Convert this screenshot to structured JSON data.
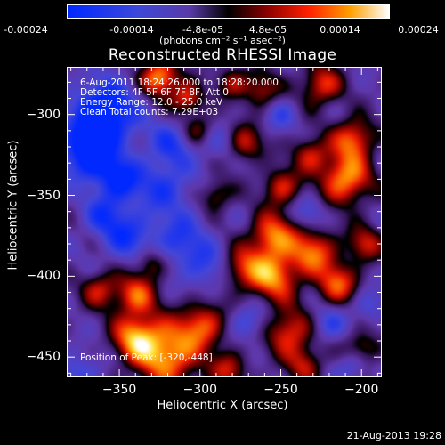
{
  "colorbar": {
    "ticks": [
      "-0.00024",
      "-0.00014",
      "-4.8e-05",
      "4.8e-05",
      "0.00014",
      "0.00024"
    ],
    "unit_label": "(photons cm⁻² s⁻¹ asec⁻²)",
    "min": -0.00024,
    "max": 0.00024
  },
  "plot": {
    "title": "Reconstructed RHESSI Image",
    "info_lines": [
      " 6-Aug-2011 18:24:26.000 to 18:28:20.000",
      "Detectors: 4F 5F 6F 7F 8F, Att 0",
      "Energy Range: 12.0 - 25.0 keV",
      "Clean    Total counts: 7.29E+03"
    ],
    "peak_label": "Position of Peak: [-320,-448]",
    "footer": "21-Aug-2013 19:28"
  },
  "chart_data": {
    "type": "heatmap",
    "title": "Reconstructed RHESSI Image",
    "xlabel": "Heliocentric X (arcsec)",
    "ylabel": "Heliocentric Y (arcsec)",
    "xlim": [
      -382,
      -188
    ],
    "ylim": [
      -462,
      -271
    ],
    "x_ticks": [
      -350,
      -300,
      -250,
      -200
    ],
    "y_ticks": [
      -300,
      -350,
      -400,
      -450
    ],
    "x_tick_labels": [
      "−350",
      "−300",
      "−250",
      "−200"
    ],
    "y_tick_labels": [
      "−300",
      "−350",
      "−400",
      "−450"
    ],
    "colorbar_range": [
      -0.00024,
      0.00024
    ],
    "peak_position": [
      -320,
      -448
    ],
    "sources": [
      {
        "x": -325,
        "y": -277,
        "amp": 1.0,
        "r": 8
      },
      {
        "x": -320,
        "y": -448,
        "amp": 1.0,
        "r": 14
      },
      {
        "x": -340,
        "y": -438,
        "amp": 0.85,
        "r": 10
      },
      {
        "x": -340,
        "y": -412,
        "amp": 0.75,
        "r": 9
      },
      {
        "x": -362,
        "y": -408,
        "amp": 0.6,
        "r": 8
      },
      {
        "x": -330,
        "y": -392,
        "amp": 0.5,
        "r": 7
      },
      {
        "x": -298,
        "y": -430,
        "amp": 0.7,
        "r": 10
      },
      {
        "x": -282,
        "y": -458,
        "amp": 0.55,
        "r": 8
      },
      {
        "x": -275,
        "y": -395,
        "amp": 0.6,
        "r": 9
      },
      {
        "x": -255,
        "y": -400,
        "amp": 0.9,
        "r": 11
      },
      {
        "x": -255,
        "y": -375,
        "amp": 0.85,
        "r": 10
      },
      {
        "x": -245,
        "y": -435,
        "amp": 0.75,
        "r": 10
      },
      {
        "x": -235,
        "y": -455,
        "amp": 0.55,
        "r": 8
      },
      {
        "x": -230,
        "y": -385,
        "amp": 0.8,
        "r": 10
      },
      {
        "x": -215,
        "y": -405,
        "amp": 0.75,
        "r": 9
      },
      {
        "x": -210,
        "y": -340,
        "amp": 0.95,
        "r": 11
      },
      {
        "x": -205,
        "y": -315,
        "amp": 0.8,
        "r": 9
      },
      {
        "x": -232,
        "y": -325,
        "amp": 0.6,
        "r": 8
      },
      {
        "x": -225,
        "y": -282,
        "amp": 0.7,
        "r": 9
      },
      {
        "x": -262,
        "y": -285,
        "amp": 0.55,
        "r": 8
      },
      {
        "x": -272,
        "y": -318,
        "amp": 0.6,
        "r": 8
      },
      {
        "x": -250,
        "y": -345,
        "amp": 0.65,
        "r": 8
      },
      {
        "x": -290,
        "y": -350,
        "amp": 0.5,
        "r": 7
      },
      {
        "x": -300,
        "y": -310,
        "amp": 0.45,
        "r": 7
      },
      {
        "x": -308,
        "y": -290,
        "amp": 0.7,
        "r": 7
      },
      {
        "x": -280,
        "y": -280,
        "amp": 0.5,
        "r": 7
      },
      {
        "x": -200,
        "y": -445,
        "amp": 0.55,
        "r": 8
      },
      {
        "x": -198,
        "y": -380,
        "amp": 0.6,
        "r": 8
      },
      {
        "x": -360,
        "y": -300,
        "amp": -1.0,
        "r": 14
      },
      {
        "x": -370,
        "y": -325,
        "amp": -0.85,
        "r": 11
      },
      {
        "x": -350,
        "y": -340,
        "amp": -0.7,
        "r": 10
      },
      {
        "x": -322,
        "y": -345,
        "amp": -0.5,
        "r": 12
      },
      {
        "x": -345,
        "y": -375,
        "amp": -0.55,
        "r": 11
      },
      {
        "x": -312,
        "y": -378,
        "amp": -0.5,
        "r": 12
      },
      {
        "x": -318,
        "y": -318,
        "amp": -0.45,
        "r": 10
      },
      {
        "x": -360,
        "y": -362,
        "amp": -0.45,
        "r": 9
      },
      {
        "x": -295,
        "y": -395,
        "amp": -0.4,
        "r": 10
      },
      {
        "x": -270,
        "y": -428,
        "amp": -0.4,
        "r": 8
      },
      {
        "x": -290,
        "y": -318,
        "amp": -0.3,
        "r": 8
      },
      {
        "x": -220,
        "y": -430,
        "amp": -0.4,
        "r": 8
      },
      {
        "x": -232,
        "y": -360,
        "amp": -0.35,
        "r": 7
      },
      {
        "x": -205,
        "y": -455,
        "amp": -0.45,
        "r": 7
      },
      {
        "x": -195,
        "y": -418,
        "amp": -0.35,
        "r": 7
      },
      {
        "x": -250,
        "y": -300,
        "amp": -0.35,
        "r": 7
      },
      {
        "x": -375,
        "y": -460,
        "amp": -0.4,
        "r": 9
      }
    ],
    "background": -0.28
  }
}
